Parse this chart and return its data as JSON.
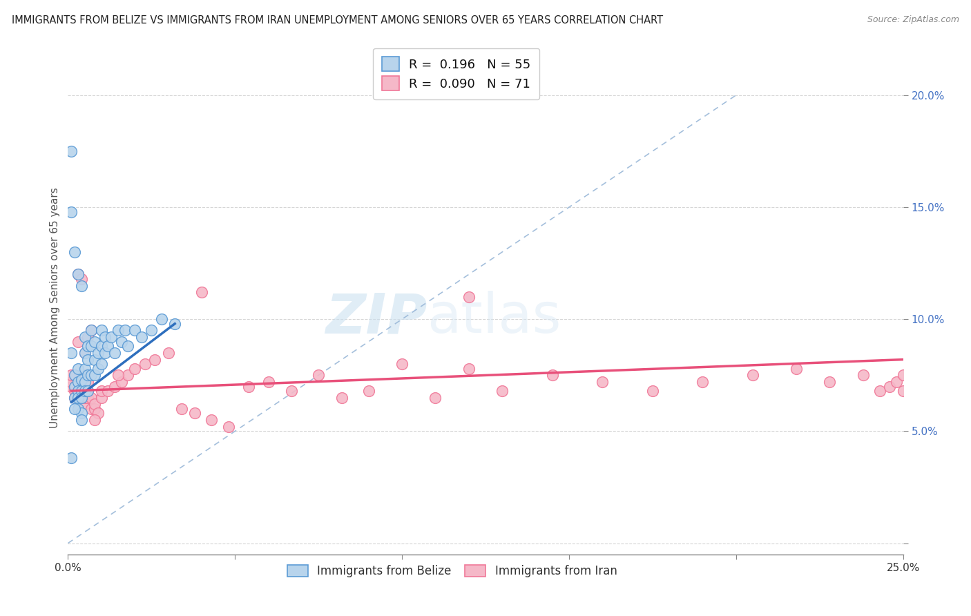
{
  "title": "IMMIGRANTS FROM BELIZE VS IMMIGRANTS FROM IRAN UNEMPLOYMENT AMONG SENIORS OVER 65 YEARS CORRELATION CHART",
  "source": "Source: ZipAtlas.com",
  "ylabel": "Unemployment Among Seniors over 65 years",
  "xlabel_belize": "Immigrants from Belize",
  "xlabel_iran": "Immigrants from Iran",
  "xlim": [
    0.0,
    0.25
  ],
  "ylim": [
    -0.005,
    0.215
  ],
  "yticks": [
    0.0,
    0.05,
    0.1,
    0.15,
    0.2
  ],
  "xticks": [
    0.0,
    0.05,
    0.1,
    0.15,
    0.2,
    0.25
  ],
  "legend_belize_R": "0.196",
  "legend_belize_N": "55",
  "legend_iran_R": "0.090",
  "legend_iran_N": "71",
  "color_belize_fill": "#b8d4ec",
  "color_iran_fill": "#f5b8c8",
  "color_belize_edge": "#5b9bd5",
  "color_iran_edge": "#f07898",
  "color_belize_line": "#2e6fbe",
  "color_iran_line": "#e8507a",
  "color_diag": "#9ab8d8",
  "watermark_zip": "ZIP",
  "watermark_atlas": "atlas",
  "belize_x": [
    0.001,
    0.001,
    0.002,
    0.002,
    0.002,
    0.003,
    0.003,
    0.003,
    0.003,
    0.003,
    0.004,
    0.004,
    0.004,
    0.004,
    0.004,
    0.005,
    0.005,
    0.005,
    0.005,
    0.005,
    0.006,
    0.006,
    0.006,
    0.006,
    0.007,
    0.007,
    0.007,
    0.008,
    0.008,
    0.008,
    0.009,
    0.009,
    0.01,
    0.01,
    0.01,
    0.011,
    0.011,
    0.012,
    0.013,
    0.014,
    0.015,
    0.016,
    0.017,
    0.018,
    0.02,
    0.022,
    0.025,
    0.028,
    0.032,
    0.002,
    0.003,
    0.004,
    0.001,
    0.002,
    0.001
  ],
  "belize_y": [
    0.085,
    0.175,
    0.075,
    0.07,
    0.065,
    0.072,
    0.068,
    0.078,
    0.065,
    0.06,
    0.073,
    0.068,
    0.065,
    0.058,
    0.055,
    0.092,
    0.085,
    0.078,
    0.072,
    0.068,
    0.088,
    0.082,
    0.075,
    0.068,
    0.095,
    0.088,
    0.075,
    0.09,
    0.082,
    0.075,
    0.078,
    0.085,
    0.095,
    0.088,
    0.08,
    0.092,
    0.085,
    0.088,
    0.092,
    0.085,
    0.095,
    0.09,
    0.095,
    0.088,
    0.095,
    0.092,
    0.095,
    0.1,
    0.098,
    0.13,
    0.12,
    0.115,
    0.148,
    0.06,
    0.038
  ],
  "iran_x": [
    0.001,
    0.001,
    0.001,
    0.002,
    0.002,
    0.002,
    0.002,
    0.003,
    0.003,
    0.003,
    0.004,
    0.004,
    0.004,
    0.005,
    0.005,
    0.005,
    0.006,
    0.006,
    0.006,
    0.007,
    0.007,
    0.008,
    0.008,
    0.009,
    0.01,
    0.01,
    0.012,
    0.014,
    0.016,
    0.018,
    0.02,
    0.023,
    0.026,
    0.03,
    0.034,
    0.038,
    0.043,
    0.048,
    0.054,
    0.06,
    0.067,
    0.075,
    0.082,
    0.09,
    0.1,
    0.11,
    0.12,
    0.13,
    0.145,
    0.16,
    0.175,
    0.19,
    0.205,
    0.218,
    0.228,
    0.238,
    0.243,
    0.246,
    0.248,
    0.25,
    0.25,
    0.003,
    0.003,
    0.004,
    0.005,
    0.006,
    0.007,
    0.008,
    0.015,
    0.04,
    0.12
  ],
  "iran_y": [
    0.07,
    0.072,
    0.075,
    0.068,
    0.065,
    0.07,
    0.075,
    0.065,
    0.068,
    0.072,
    0.065,
    0.068,
    0.07,
    0.062,
    0.065,
    0.075,
    0.065,
    0.068,
    0.072,
    0.06,
    0.065,
    0.06,
    0.062,
    0.058,
    0.065,
    0.068,
    0.068,
    0.07,
    0.072,
    0.075,
    0.078,
    0.08,
    0.082,
    0.085,
    0.06,
    0.058,
    0.055,
    0.052,
    0.07,
    0.072,
    0.068,
    0.075,
    0.065,
    0.068,
    0.08,
    0.065,
    0.078,
    0.068,
    0.075,
    0.072,
    0.068,
    0.072,
    0.075,
    0.078,
    0.072,
    0.075,
    0.068,
    0.07,
    0.072,
    0.075,
    0.068,
    0.12,
    0.09,
    0.118,
    0.085,
    0.092,
    0.095,
    0.055,
    0.075,
    0.112,
    0.11
  ],
  "belize_trend_x": [
    0.001,
    0.032
  ],
  "belize_trend_y": [
    0.063,
    0.098
  ],
  "iran_trend_x": [
    0.001,
    0.25
  ],
  "iran_trend_y": [
    0.068,
    0.082
  ]
}
